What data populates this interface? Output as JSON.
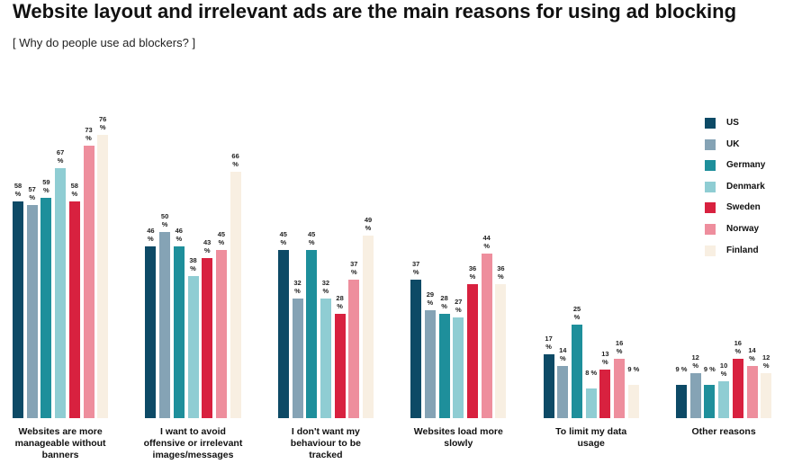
{
  "chart_data": {
    "type": "bar",
    "title": "Website layout and irrelevant ads are the main reasons for using ad blocking",
    "subtitle": "[ Why do people use ad blockers? ]",
    "categories": [
      "Websites are more manageable without banners",
      "I want to avoid offensive or irrelevant images/messages",
      "I don't want my behaviour to be tracked",
      "Websites load more slowly",
      "To limit my data usage",
      "Other reasons"
    ],
    "legend": "right",
    "series": [
      {
        "name": "US",
        "color": "#0d4a66",
        "values": [
          58,
          46,
          45,
          37,
          17,
          9
        ],
        "value_labels": [
          "58 %",
          "46 %",
          "45 %",
          "37 %",
          "17 %",
          "9 %"
        ]
      },
      {
        "name": "UK",
        "color": "#85a3b5",
        "values": [
          57,
          50,
          32,
          29,
          14,
          12
        ],
        "value_labels": [
          "57 %",
          "50 %",
          "32 %",
          "29 %",
          "14 %",
          "12 %"
        ]
      },
      {
        "name": "Germany",
        "color": "#1e8f9b",
        "values": [
          59,
          46,
          45,
          28,
          25,
          9
        ],
        "value_labels": [
          "59 %",
          "46 %",
          "45 %",
          "28 %",
          "25 %",
          "9 %"
        ]
      },
      {
        "name": "Denmark",
        "color": "#8fcdd3",
        "values": [
          67,
          38,
          32,
          27,
          8,
          10
        ],
        "value_labels": [
          "67 %",
          "38 %",
          "32 %",
          "27 %",
          "8 %",
          "10 %"
        ]
      },
      {
        "name": "Sweden",
        "color": "#d8213f",
        "values": [
          58,
          43,
          28,
          36,
          13,
          16
        ],
        "value_labels": [
          "58 %",
          "43 %",
          "28 %",
          "36 %",
          "13 %",
          "16 %"
        ]
      },
      {
        "name": "Norway",
        "color": "#ee8e9d",
        "values": [
          73,
          45,
          37,
          44,
          16,
          14
        ],
        "value_labels": [
          "73 %",
          "45 %",
          "37 %",
          "44 %",
          "16 %",
          "14 %"
        ]
      },
      {
        "name": "Finland",
        "color": "#f8efe2",
        "values": [
          76,
          66,
          49,
          36,
          9,
          12
        ],
        "value_labels": [
          "76 %",
          "66 %",
          "49 %",
          "36 %",
          "9 %",
          "12 %"
        ]
      }
    ]
  }
}
